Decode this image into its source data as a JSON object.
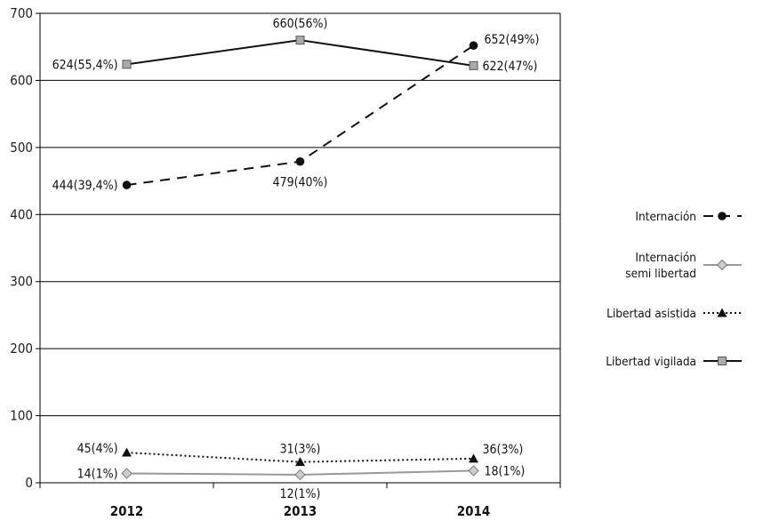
{
  "chart_data": {
    "type": "line",
    "categories": [
      "2012",
      "2013",
      "2014"
    ],
    "ylim": [
      0,
      700
    ],
    "yticks": [
      0,
      100,
      200,
      300,
      400,
      500,
      600,
      700
    ],
    "grid": "horizontal",
    "legend_position": "right",
    "series": [
      {
        "name": "Internación",
        "style": "dashed",
        "marker": "circle",
        "color": "#111111",
        "values": [
          444,
          479,
          652
        ],
        "labels": [
          "444(39,4%)",
          "479(40%)",
          "652(49%)"
        ]
      },
      {
        "name": "Internación semi libertad",
        "name_lines": [
          "Internación",
          "semi libertad"
        ],
        "style": "solid",
        "marker": "diamond",
        "color": "#999999",
        "values": [
          14,
          12,
          18
        ],
        "labels": [
          "14(1%)",
          "12(1%)",
          "18(1%)"
        ]
      },
      {
        "name": "Libertad asistida",
        "style": "dotted",
        "marker": "triangle",
        "color": "#111111",
        "values": [
          45,
          31,
          36
        ],
        "labels": [
          "45(4%)",
          "31(3%)",
          "36(3%)"
        ]
      },
      {
        "name": "Libertad vigilada",
        "style": "solid",
        "marker": "square",
        "color": "#111111",
        "values": [
          624,
          660,
          622
        ],
        "labels": [
          "624(55,4%)",
          "660(56%)",
          "622(47%)"
        ]
      }
    ]
  }
}
